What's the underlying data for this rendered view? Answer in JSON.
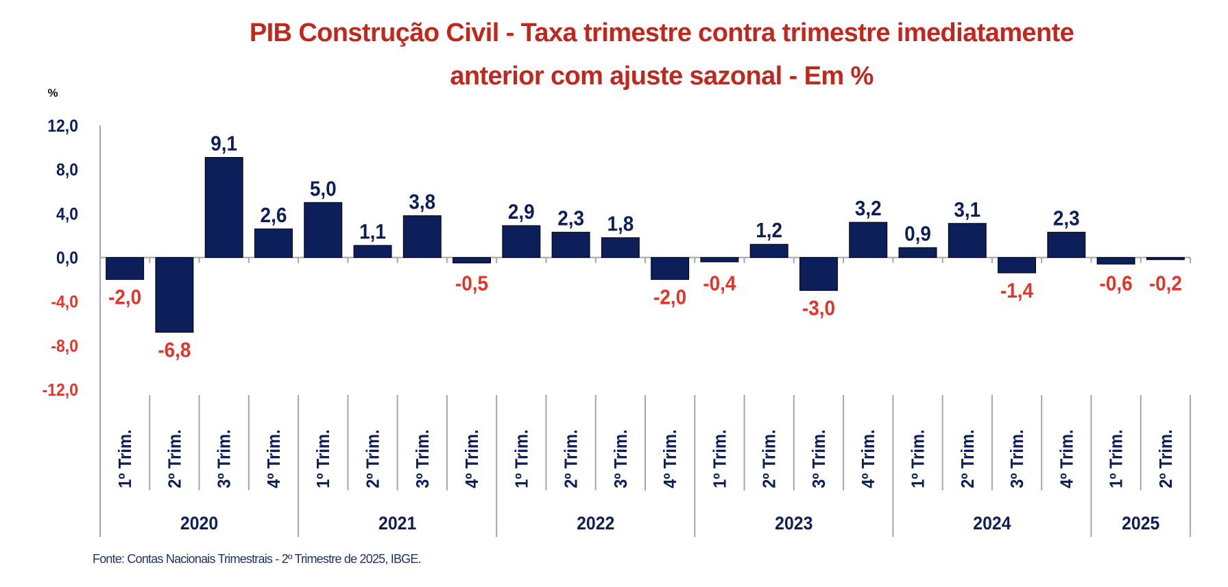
{
  "chart_data": {
    "type": "bar",
    "title": "PIB Construção Civil - Taxa trimestre contra trimestre imediatamente anterior com ajuste sazonal  - Em %",
    "title_lines": [
      "PIB Construção Civil - Taxa trimestre contra trimestre imediatamente",
      "anterior com ajuste sazonal  - Em %"
    ],
    "ylabel": "%",
    "ylim": [
      -12,
      12
    ],
    "yticks": [
      12,
      8,
      4,
      0,
      -4,
      -8,
      -12
    ],
    "ytick_labels": [
      "12,0",
      "8,0",
      "4,0",
      "0,0",
      "-4,0",
      "-8,0",
      "-12,0"
    ],
    "categories": [
      "1º Trim.",
      "2º Trim.",
      "3º Trim.",
      "4º Trim.",
      "1º Trim.",
      "2º Trim.",
      "3º Trim.",
      "4º Trim.",
      "1º Trim.",
      "2º Trim.",
      "3º Trim.",
      "4º Trim.",
      "1º Trim.",
      "2º Trim.",
      "3º Trim.",
      "4º Trim.",
      "1º Trim.",
      "2º Trim.",
      "3º Trim.",
      "4º Trim.",
      "1º Trim.",
      "2º Trim."
    ],
    "groups": [
      {
        "label": "2020",
        "count": 4
      },
      {
        "label": "2021",
        "count": 4
      },
      {
        "label": "2022",
        "count": 4
      },
      {
        "label": "2023",
        "count": 4
      },
      {
        "label": "2024",
        "count": 4
      },
      {
        "label": "2025",
        "count": 2
      }
    ],
    "values": [
      -2.0,
      -6.8,
      9.1,
      2.6,
      5.0,
      1.1,
      3.8,
      -0.5,
      2.9,
      2.3,
      1.8,
      -2.0,
      -0.4,
      1.2,
      -3.0,
      3.2,
      0.9,
      3.1,
      -1.4,
      2.3,
      -0.6,
      -0.2
    ],
    "data_labels": [
      "-2,0",
      "-6,8",
      "9,1",
      "2,6",
      "5,0",
      "1,1",
      "3,8",
      "-0,5",
      "2,9",
      "2,3",
      "1,8",
      "-2,0",
      "-0,4",
      "1,2",
      "-3,0",
      "3,2",
      "0,9",
      "3,1",
      "-1,4",
      "2,3",
      "-0,6",
      "-0,2"
    ],
    "grid": false,
    "legend": "none",
    "colors": {
      "bar": "#0d1f5a",
      "positive_text": "#0d1f5a",
      "negative_text": "#e3342a",
      "title": "#c0281e",
      "axis": "#a6a6a6"
    }
  },
  "source": "Fonte: Contas Nacionais Trimestrais - 2º Trimestre de 2025, IBGE."
}
